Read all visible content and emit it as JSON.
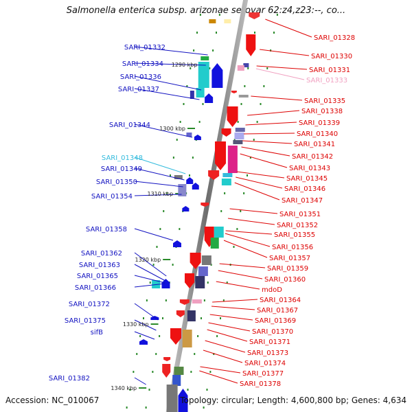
{
  "title": "Salmonella enterica subsp. arizonae serovar 62:z4,z23:--, co...",
  "footer": {
    "accession": "Accession: NC_010067",
    "topology": "Topology: circular; Length: 4,600,800 bp; Genes: 4,634"
  },
  "colors": {
    "left_label": "#1010c0",
    "right_label": "#dd0000",
    "highlight_left": "#33bbdd",
    "highlight_right": "#f0a0c0",
    "backbone": "#8a8a8a"
  },
  "kbp_marks": [
    "1290 kbp",
    "1300 kbp",
    "1310 kbp",
    "1320 kbp",
    "1330 kbp",
    "1340 kbp"
  ],
  "left_labels": [
    {
      "text": "SARI_01332"
    },
    {
      "text": "SARI_01334"
    },
    {
      "text": "SARI_01336"
    },
    {
      "text": "SARI_01337"
    },
    {
      "text": "SARI_01344"
    },
    {
      "text": "SARI_01348",
      "highlight": true
    },
    {
      "text": "SARI_01349"
    },
    {
      "text": "SARI_01350"
    },
    {
      "text": "SARI_01354"
    },
    {
      "text": "SARI_01358"
    },
    {
      "text": "SARI_01362"
    },
    {
      "text": "SARI_01363"
    },
    {
      "text": "SARI_01365"
    },
    {
      "text": "SARI_01366"
    },
    {
      "text": "SARI_01372"
    },
    {
      "text": "SARI_01375"
    },
    {
      "text": "sifB"
    },
    {
      "text": "SARI_01382"
    }
  ],
  "right_labels": [
    {
      "text": "SARI_01328"
    },
    {
      "text": "SARI_01330"
    },
    {
      "text": "SARI_01331"
    },
    {
      "text": "SARI_01333",
      "highlight": true
    },
    {
      "text": "SARI_01335"
    },
    {
      "text": "SARI_01338"
    },
    {
      "text": "SARI_01339"
    },
    {
      "text": "SARI_01340"
    },
    {
      "text": "SARI_01341"
    },
    {
      "text": "SARI_01342"
    },
    {
      "text": "SARI_01343"
    },
    {
      "text": "SARI_01345"
    },
    {
      "text": "SARI_01346"
    },
    {
      "text": "SARI_01347"
    },
    {
      "text": "SARI_01351"
    },
    {
      "text": "SARI_01352"
    },
    {
      "text": "SARI_01355"
    },
    {
      "text": "SARI_01356"
    },
    {
      "text": "SARI_01357"
    },
    {
      "text": "SARI_01359"
    },
    {
      "text": "SARI_01360"
    },
    {
      "text": "mdoD"
    },
    {
      "text": "SARI_01364"
    },
    {
      "text": "SARI_01367"
    },
    {
      "text": "SARI_01369"
    },
    {
      "text": "SARI_01370"
    },
    {
      "text": "SARI_01371"
    },
    {
      "text": "SARI_01373"
    },
    {
      "text": "SARI_01374"
    },
    {
      "text": "SARI_01377"
    },
    {
      "text": "SARI_01378"
    }
  ]
}
